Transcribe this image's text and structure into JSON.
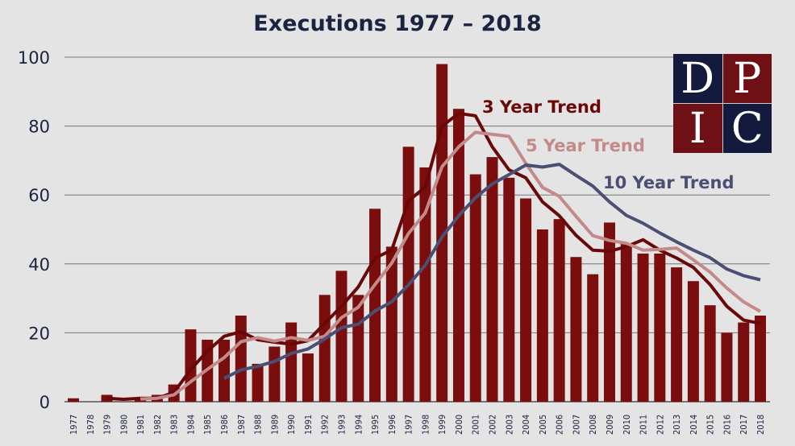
{
  "chart_data": {
    "type": "bar",
    "title": "Executions 1977 – 2018",
    "xlabel": "",
    "ylabel": "",
    "ylim": [
      0,
      100
    ],
    "yticks": [
      0,
      20,
      40,
      60,
      80,
      100
    ],
    "grid": true,
    "categories": [
      "1977",
      "1978",
      "1979",
      "1980",
      "1981",
      "1982",
      "1983",
      "1984",
      "1985",
      "1986",
      "1987",
      "1988",
      "1989",
      "1990",
      "1991",
      "1992",
      "1993",
      "1994",
      "1995",
      "1996",
      "1997",
      "1998",
      "1999",
      "2000",
      "2001",
      "2002",
      "2003",
      "2004",
      "2005",
      "2006",
      "2007",
      "2008",
      "2009",
      "2010",
      "2011",
      "2012",
      "2013",
      "2014",
      "2015",
      "2016",
      "2017",
      "2018"
    ],
    "values": [
      1,
      0,
      2,
      0,
      1,
      2,
      5,
      21,
      18,
      18,
      25,
      11,
      16,
      23,
      14,
      31,
      38,
      31,
      56,
      45,
      74,
      68,
      98,
      85,
      66,
      71,
      65,
      59,
      50,
      53,
      42,
      37,
      52,
      46,
      43,
      43,
      39,
      35,
      28,
      20,
      23,
      25
    ],
    "bar_color": "#7a0e0e",
    "lines": [
      {
        "name": "3 Year Trend",
        "color": "#6a0707",
        "start": "1979",
        "values": [
          1.0,
          0.7,
          1.0,
          1.0,
          2.7,
          9.3,
          14.7,
          19.0,
          20.3,
          18.0,
          17.3,
          16.7,
          17.7,
          22.7,
          27.7,
          33.3,
          41.7,
          44.0,
          58.3,
          62.3,
          80.0,
          83.7,
          83.0,
          74.0,
          67.3,
          65.0,
          58.0,
          54.0,
          48.3,
          44.0,
          43.7,
          45.0,
          47.0,
          44.0,
          41.7,
          39.0,
          34.0,
          27.7,
          23.7,
          22.7
        ]
      },
      {
        "name": "5 Year Trend",
        "color": "#c48a8a",
        "start": "1981",
        "values": [
          0.8,
          1.0,
          2.0,
          5.8,
          9.4,
          12.8,
          17.4,
          18.6,
          17.6,
          18.6,
          17.8,
          19.0,
          24.4,
          27.4,
          34.0,
          40.2,
          48.8,
          54.8,
          68.2,
          74.0,
          78.2,
          77.6,
          77.0,
          69.2,
          62.2,
          59.6,
          53.8,
          48.2,
          46.8,
          46.0,
          44.0,
          44.2,
          44.6,
          41.2,
          37.6,
          33.0,
          29.0,
          26.2
        ]
      },
      {
        "name": "10 Year Trend",
        "color": "#4b4f73",
        "start": "1986",
        "values": [
          6.8,
          9.2,
          10.3,
          11.7,
          14.0,
          15.3,
          18.2,
          21.5,
          22.5,
          26.3,
          29.0,
          33.9,
          39.6,
          47.8,
          54.0,
          59.2,
          63.2,
          65.9,
          68.7,
          68.1,
          68.9,
          65.7,
          62.6,
          58.0,
          54.1,
          51.8,
          49.0,
          46.4,
          44.0,
          41.8,
          38.5,
          36.6,
          35.4
        ]
      }
    ]
  },
  "logo": {
    "letters": [
      "D",
      "P",
      "I",
      "C"
    ],
    "colors": [
      "#131a3e",
      "#6e1016"
    ]
  }
}
